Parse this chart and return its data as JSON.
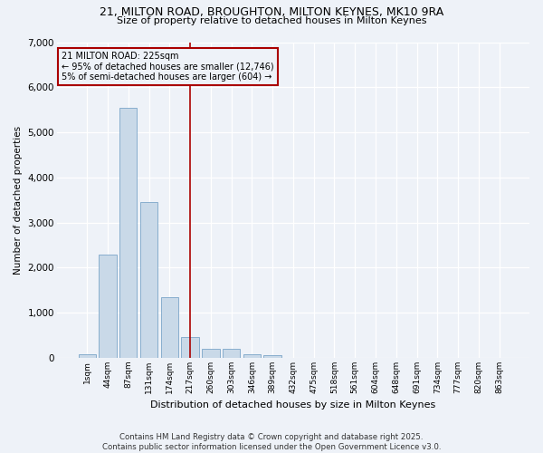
{
  "title1": "21, MILTON ROAD, BROUGHTON, MILTON KEYNES, MK10 9RA",
  "title2": "Size of property relative to detached houses in Milton Keynes",
  "xlabel": "Distribution of detached houses by size in Milton Keynes",
  "ylabel": "Number of detached properties",
  "categories": [
    "1sqm",
    "44sqm",
    "87sqm",
    "131sqm",
    "174sqm",
    "217sqm",
    "260sqm",
    "303sqm",
    "346sqm",
    "389sqm",
    "432sqm",
    "475sqm",
    "518sqm",
    "561sqm",
    "604sqm",
    "648sqm",
    "691sqm",
    "734sqm",
    "777sqm",
    "820sqm",
    "863sqm"
  ],
  "values": [
    80,
    2300,
    5550,
    3450,
    1350,
    460,
    200,
    200,
    80,
    60,
    0,
    0,
    0,
    0,
    0,
    0,
    0,
    0,
    0,
    0,
    0
  ],
  "bar_color": "#c9d9e8",
  "bar_edge_color": "#7ba5c8",
  "vline_x_idx": 5,
  "vline_color": "#aa0000",
  "annotation_line1": "21 MILTON ROAD: 225sqm",
  "annotation_line2": "← 95% of detached houses are smaller (12,746)",
  "annotation_line3": "5% of semi-detached houses are larger (604) →",
  "annotation_box_color": "#aa0000",
  "ylim": [
    0,
    7000
  ],
  "yticks": [
    0,
    1000,
    2000,
    3000,
    4000,
    5000,
    6000,
    7000
  ],
  "footer1": "Contains HM Land Registry data © Crown copyright and database right 2025.",
  "footer2": "Contains public sector information licensed under the Open Government Licence v3.0.",
  "bg_color": "#eef2f8"
}
